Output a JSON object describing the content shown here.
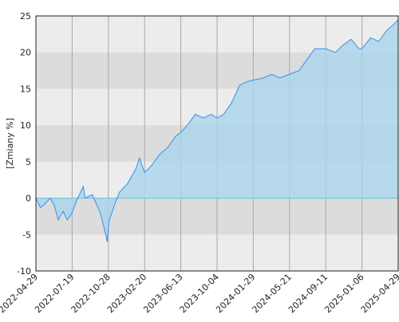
{
  "chart_data": {
    "type": "area",
    "ylabel": "[Zmiany %]",
    "x": [
      "2022-04-29",
      "2022-05-09",
      "2022-05-19",
      "2022-05-31",
      "2022-06-09",
      "2022-06-18",
      "2022-06-29",
      "2022-07-08",
      "2022-07-19",
      "2022-07-30",
      "2022-08-19",
      "2022-08-24",
      "2022-09-13",
      "2022-10-05",
      "2022-10-16",
      "2022-10-25",
      "2022-10-28",
      "2022-10-31",
      "2022-11-20",
      "2022-12-02",
      "2022-12-28",
      "2023-01-23",
      "2023-02-04",
      "2023-02-20",
      "2023-03-14",
      "2023-04-08",
      "2023-05-04",
      "2023-05-28",
      "2023-06-13",
      "2023-07-03",
      "2023-07-28",
      "2023-08-22",
      "2023-09-16",
      "2023-10-04",
      "2023-10-25",
      "2023-11-19",
      "2023-12-16",
      "2024-01-10",
      "2024-01-29",
      "2024-03-01",
      "2024-03-27",
      "2024-04-21",
      "2024-05-21",
      "2024-06-20",
      "2024-07-14",
      "2024-08-08",
      "2024-09-11",
      "2024-10-12",
      "2024-11-06",
      "2024-12-02",
      "2024-12-28",
      "2025-01-06",
      "2025-02-02",
      "2025-02-27",
      "2025-03-24",
      "2025-04-19",
      "2025-04-29"
    ],
    "series": [
      {
        "color": "#3a8ee6",
        "fill": "#a9d6ec",
        "values": [
          0,
          -1.3,
          -0.8,
          0,
          -1,
          -3,
          -1.8,
          -3,
          -2,
          -0.5,
          1.6,
          0,
          0.5,
          -2,
          -4,
          -6,
          -4,
          -3,
          -0.5,
          0.8,
          2,
          4,
          5.5,
          3.5,
          4.5,
          6,
          7,
          8.5,
          9,
          10,
          11.5,
          11,
          11.5,
          11,
          11.5,
          13,
          15.5,
          16,
          16.2,
          16.5,
          17,
          16.5,
          17,
          17.5,
          19,
          20.5,
          20.5,
          20,
          21,
          21.8,
          20.5,
          20.5,
          22,
          21.5,
          23,
          24,
          24.5
        ]
      }
    ],
    "xlim": [
      "2022-04-29",
      "2025-04-29"
    ],
    "xticks": [
      "2022-04-29",
      "2022-07-19",
      "2022-10-28",
      "2023-02-20",
      "2023-06-13",
      "2023-10-04",
      "2024-01-29",
      "2024-05-21",
      "2024-09-11",
      "2025-01-06",
      "2025-04-29"
    ],
    "ylim": [
      -10,
      25
    ],
    "yticks": [
      -10,
      -5,
      0,
      5,
      10,
      15,
      20,
      25
    ],
    "grid": true
  }
}
